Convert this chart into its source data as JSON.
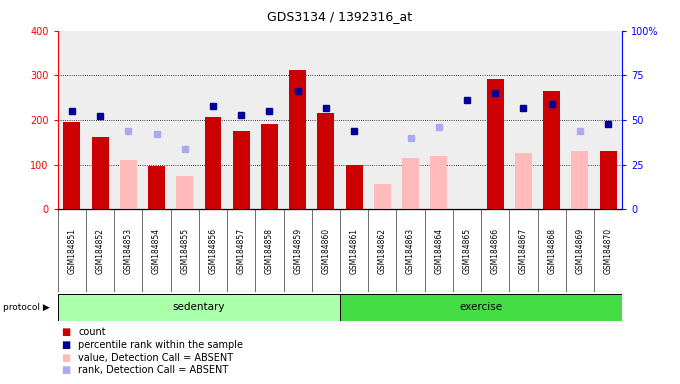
{
  "title": "GDS3134 / 1392316_at",
  "samples": [
    "GSM184851",
    "GSM184852",
    "GSM184853",
    "GSM184854",
    "GSM184855",
    "GSM184856",
    "GSM184857",
    "GSM184858",
    "GSM184859",
    "GSM184860",
    "GSM184861",
    "GSM184862",
    "GSM184863",
    "GSM184864",
    "GSM184865",
    "GSM184866",
    "GSM184867",
    "GSM184868",
    "GSM184869",
    "GSM184870"
  ],
  "count_present": [
    195,
    163,
    null,
    97,
    null,
    207,
    175,
    190,
    312,
    215,
    100,
    null,
    null,
    null,
    null,
    291,
    null,
    264,
    null,
    130
  ],
  "count_absent": [
    null,
    null,
    110,
    null,
    75,
    null,
    null,
    null,
    null,
    null,
    null,
    57,
    115,
    120,
    null,
    null,
    125,
    null,
    130,
    null
  ],
  "rank_present": [
    55,
    52,
    null,
    null,
    null,
    58,
    53,
    55,
    66,
    57,
    44,
    null,
    null,
    null,
    61,
    65,
    57,
    59,
    null,
    48
  ],
  "rank_absent": [
    null,
    null,
    44,
    42,
    34,
    null,
    null,
    null,
    null,
    null,
    null,
    null,
    40,
    46,
    null,
    null,
    null,
    null,
    44,
    null
  ],
  "groups": {
    "sedentary": [
      0,
      1,
      2,
      3,
      4,
      5,
      6,
      7,
      8,
      9
    ],
    "exercise": [
      10,
      11,
      12,
      13,
      14,
      15,
      16,
      17,
      18,
      19
    ]
  },
  "group_colors": {
    "sedentary": "#aaffaa",
    "exercise": "#44dd44"
  },
  "bar_color_present": "#cc0000",
  "bar_color_absent": "#ffbbbb",
  "dot_color_present": "#000099",
  "dot_color_absent": "#aaaaee",
  "ylim_left": [
    0,
    400
  ],
  "ylim_right": [
    0,
    100
  ],
  "yticks_left": [
    0,
    100,
    200,
    300,
    400
  ],
  "yticks_right": [
    0,
    25,
    50,
    75,
    100
  ],
  "background_color": "#ffffff",
  "plot_bg_color": "#eeeeee"
}
